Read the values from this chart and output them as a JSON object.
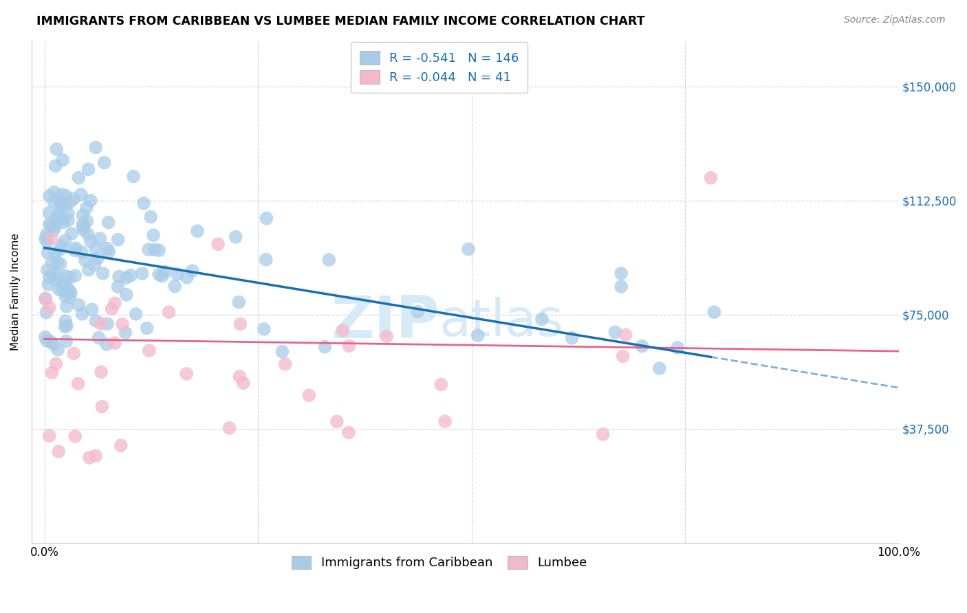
{
  "title": "IMMIGRANTS FROM CARIBBEAN VS LUMBEE MEDIAN FAMILY INCOME CORRELATION CHART",
  "source": "Source: ZipAtlas.com",
  "ylabel": "Median Family Income",
  "yticks": [
    0,
    37500,
    75000,
    112500,
    150000
  ],
  "ytick_labels": [
    "",
    "$37,500",
    "$75,000",
    "$112,500",
    "$150,000"
  ],
  "legend_blue_r": "-0.541",
  "legend_blue_n": "146",
  "legend_pink_r": "-0.044",
  "legend_pink_n": "41",
  "legend_label_blue": "Immigrants from Caribbean",
  "legend_label_pink": "Lumbee",
  "blue_color": "#a8cce8",
  "pink_color": "#f4b8cb",
  "blue_line_color": "#1a6faf",
  "pink_line_color": "#e8638a",
  "watermark_color": "#d6eaf8",
  "title_fontsize": 12.5,
  "source_fontsize": 10,
  "axis_label_fontsize": 11,
  "tick_fontsize": 12,
  "legend_fontsize": 13
}
